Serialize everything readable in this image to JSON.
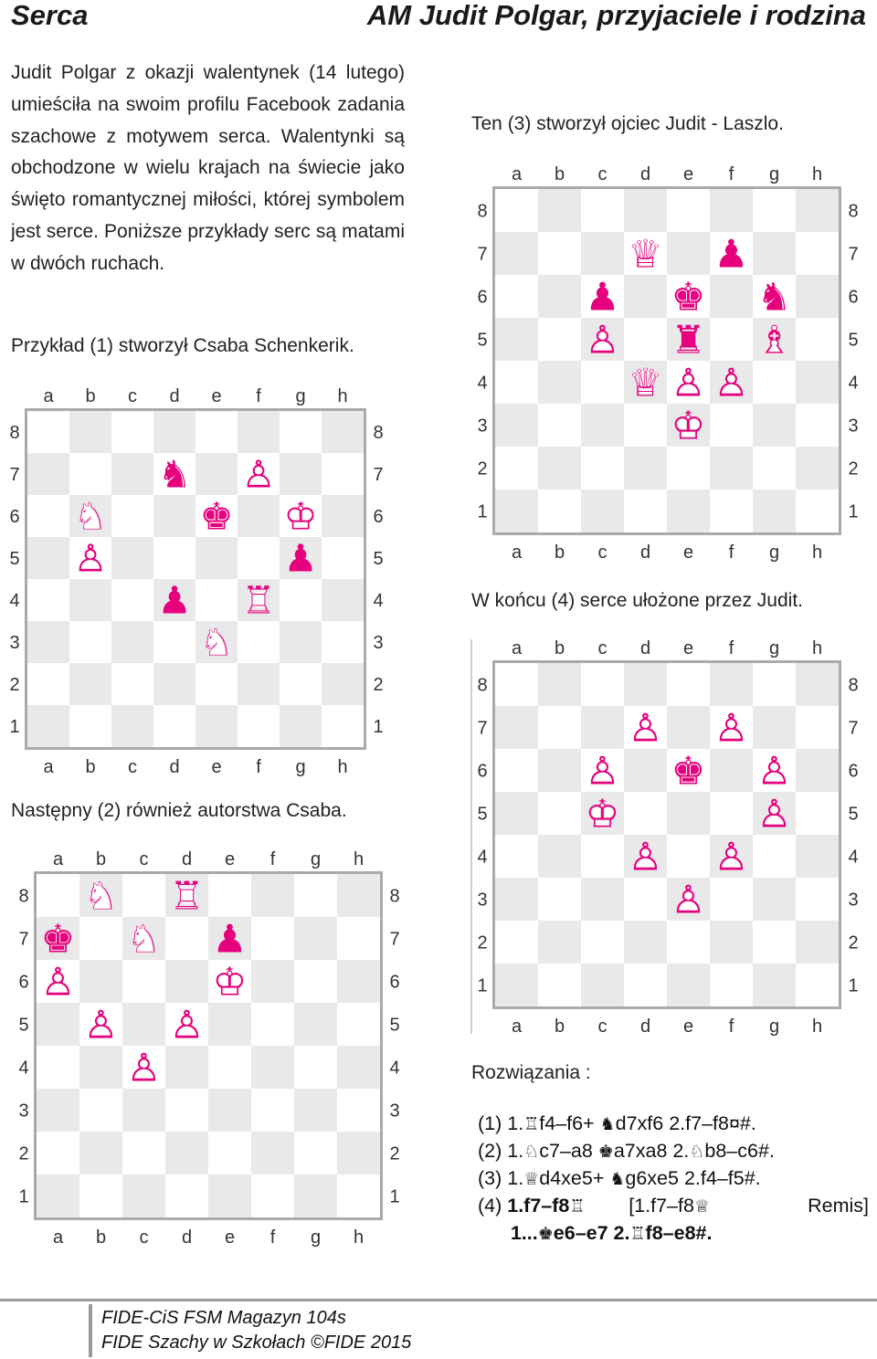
{
  "header": {
    "left": "Serca",
    "right": "AM Judit Polgar, przyjaciele i rodzina"
  },
  "intro": {
    "paragraph": "Judit Polgar z okazji walentynek (14 lutego) umieściła na swoim profilu Facebook zadania szachowe z motywem serca. Walentynki są obchodzone w wielu krajach na świecie jako święto romantycznej miłości, której symbolem jest serce. Poniższe przykłady serc są matami w dwóch ruchach."
  },
  "colors": {
    "piece_pink": "#e6007e",
    "light_square": "#ffffff",
    "dark_square": "#e9e9e9",
    "frame": "#aaaaaa"
  },
  "files": [
    "a",
    "b",
    "c",
    "d",
    "e",
    "f",
    "g",
    "h"
  ],
  "ranks": [
    "8",
    "7",
    "6",
    "5",
    "4",
    "3",
    "2",
    "1"
  ],
  "problems": [
    {
      "caption": "Przykład (1) stworzył Csaba Schenkerik.",
      "pieces": [
        {
          "sq": "d7",
          "p": "N",
          "c": "b"
        },
        {
          "sq": "f7",
          "p": "P",
          "c": "w"
        },
        {
          "sq": "b6",
          "p": "N",
          "c": "w"
        },
        {
          "sq": "e6",
          "p": "K",
          "c": "b"
        },
        {
          "sq": "g6",
          "p": "K",
          "c": "w"
        },
        {
          "sq": "b5",
          "p": "P",
          "c": "w"
        },
        {
          "sq": "g5",
          "p": "P",
          "c": "b"
        },
        {
          "sq": "d4",
          "p": "P",
          "c": "b"
        },
        {
          "sq": "f4",
          "p": "R",
          "c": "w"
        },
        {
          "sq": "e3",
          "p": "N",
          "c": "w"
        }
      ]
    },
    {
      "caption": "Następny (2) również autorstwa Csaba.",
      "pieces": [
        {
          "sq": "b8",
          "p": "N",
          "c": "w"
        },
        {
          "sq": "d8",
          "p": "R",
          "c": "w"
        },
        {
          "sq": "a7",
          "p": "K",
          "c": "b"
        },
        {
          "sq": "c7",
          "p": "N",
          "c": "w"
        },
        {
          "sq": "e7",
          "p": "P",
          "c": "b"
        },
        {
          "sq": "a6",
          "p": "P",
          "c": "w"
        },
        {
          "sq": "e6",
          "p": "K",
          "c": "w"
        },
        {
          "sq": "b5",
          "p": "P",
          "c": "w"
        },
        {
          "sq": "d5",
          "p": "P",
          "c": "w"
        },
        {
          "sq": "c4",
          "p": "P",
          "c": "w"
        }
      ]
    },
    {
      "caption": "Ten (3) stworzył ojciec Judit - Laszlo.",
      "pieces": [
        {
          "sq": "d7",
          "p": "Q",
          "c": "w"
        },
        {
          "sq": "f7",
          "p": "P",
          "c": "b"
        },
        {
          "sq": "c6",
          "p": "P",
          "c": "b"
        },
        {
          "sq": "e6",
          "p": "K",
          "c": "b"
        },
        {
          "sq": "g6",
          "p": "N",
          "c": "b"
        },
        {
          "sq": "c5",
          "p": "P",
          "c": "w"
        },
        {
          "sq": "e5",
          "p": "R",
          "c": "b"
        },
        {
          "sq": "g5",
          "p": "B",
          "c": "w"
        },
        {
          "sq": "d4",
          "p": "Q",
          "c": "w"
        },
        {
          "sq": "e4",
          "p": "P",
          "c": "w"
        },
        {
          "sq": "f4",
          "p": "P",
          "c": "w"
        },
        {
          "sq": "e3",
          "p": "K",
          "c": "w"
        }
      ]
    },
    {
      "caption": "W końcu (4) serce ułożone przez Judit.",
      "pieces": [
        {
          "sq": "d7",
          "p": "P",
          "c": "w"
        },
        {
          "sq": "f7",
          "p": "P",
          "c": "w"
        },
        {
          "sq": "c6",
          "p": "P",
          "c": "w"
        },
        {
          "sq": "e6",
          "p": "K",
          "c": "b"
        },
        {
          "sq": "g6",
          "p": "P",
          "c": "w"
        },
        {
          "sq": "c5",
          "p": "K",
          "c": "w"
        },
        {
          "sq": "g5",
          "p": "P",
          "c": "w"
        },
        {
          "sq": "d4",
          "p": "P",
          "c": "w"
        },
        {
          "sq": "f4",
          "p": "P",
          "c": "w"
        },
        {
          "sq": "e3",
          "p": "P",
          "c": "w"
        }
      ]
    }
  ],
  "solutions": {
    "heading": "Rozwiązania :",
    "lines": [
      [
        {
          "t": "(1) 1."
        },
        {
          "t": "♖",
          "g": true
        },
        {
          "t": "f4–f6+ "
        },
        {
          "t": "♞",
          "g": true
        },
        {
          "t": "d7xf6 2.f7–f8¤#."
        }
      ],
      [
        {
          "t": "(2) 1."
        },
        {
          "t": "♘",
          "g": true
        },
        {
          "t": "c7–a8 "
        },
        {
          "t": "♚",
          "g": true
        },
        {
          "t": "a7xa8 2."
        },
        {
          "t": "♘",
          "g": true
        },
        {
          "t": "b8–c6#."
        }
      ],
      [
        {
          "t": "(3) 1."
        },
        {
          "t": "♕",
          "g": true
        },
        {
          "t": "d4xe5+ "
        },
        {
          "t": "♞",
          "g": true
        },
        {
          "t": "g6xe5 2.f4–f5#."
        }
      ],
      [
        {
          "t": "(4) "
        },
        {
          "t": "1.f7–f8",
          "b": true
        },
        {
          "t": "♖",
          "g": true
        },
        {
          "t": "        [1.f7–f8"
        },
        {
          "t": "♕",
          "g": true
        }
      ],
      [
        {
          "t": "      "
        },
        {
          "t": "1...",
          "b": true
        },
        {
          "t": "♚",
          "g": true
        },
        {
          "t": "e6–e7 2.",
          "b": true
        },
        {
          "t": "♖",
          "g": true
        },
        {
          "t": "f8–e8#.",
          "b": true
        }
      ]
    ],
    "remis": "Remis]"
  },
  "footer": {
    "line1": "FIDE-CiS FSM Magazyn 104s",
    "line2": "FIDE Szachy w Szkołach ©FIDE 2015"
  }
}
